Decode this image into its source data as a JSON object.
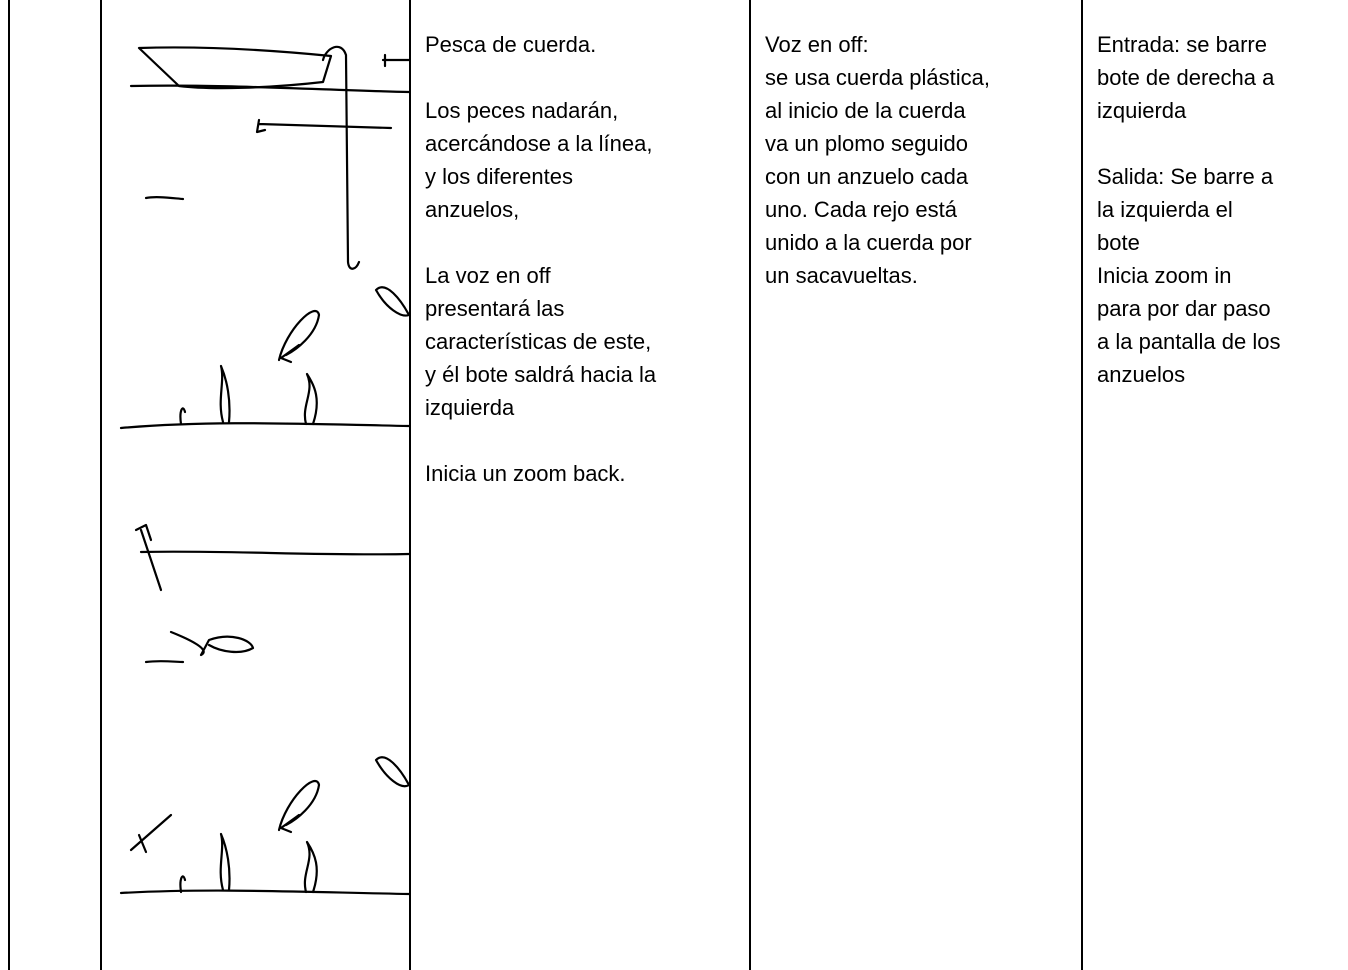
{
  "table": {
    "rows": [
      {
        "cells": [
          {
            "paragraphs": [
              [
                "Pesca de cuerda."
              ],
              [
                "Los peces nadarán,",
                "acercándose a la línea,",
                "y los diferentes",
                "anzuelos,"
              ],
              [
                "La voz en off",
                "presentará las",
                "características de este,",
                "y él bote saldrá hacia la",
                "izquierda"
              ],
              [
                "Inicia un zoom back."
              ]
            ]
          },
          {
            "paragraphs": [
              [
                "Voz en off:",
                "se usa cuerda plástica,",
                "al inicio de la cuerda",
                "va un plomo seguido",
                "con un anzuelo cada",
                "uno. Cada rejo está",
                "unido a la cuerda por",
                "un sacavueltas."
              ]
            ]
          },
          {
            "paragraphs": [
              [
                "Entrada: se barre",
                "bote de derecha a",
                "izquierda"
              ],
              [
                "Salida: Se barre a",
                "la izquierda el",
                "bote",
                "Inicia zoom in",
                "para por dar paso",
                "a la pantalla de los",
                "anzuelos"
              ]
            ]
          }
        ]
      }
    ]
  }
}
